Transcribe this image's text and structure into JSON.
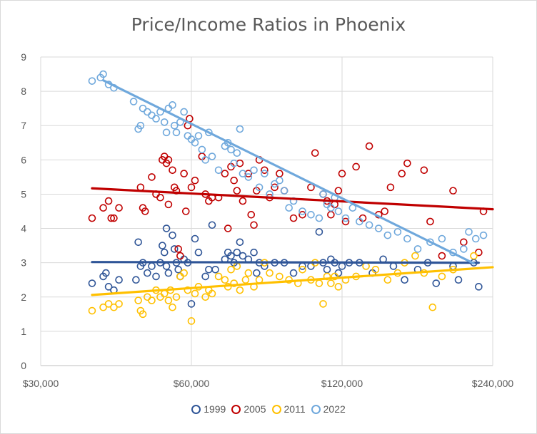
{
  "chart_data": {
    "type": "scatter",
    "title": "Price/Income Ratios in Phoenix",
    "xlabel": "",
    "ylabel": "",
    "xscale": "log",
    "xlim": [
      30000,
      240000
    ],
    "ylim": [
      0,
      9
    ],
    "x_ticks": [
      30000,
      60000,
      120000,
      240000
    ],
    "x_tick_labels": [
      "$30,000",
      "$60,000",
      "$120,000",
      "$240,000"
    ],
    "y_ticks": [
      0,
      1,
      2,
      3,
      4,
      5,
      6,
      7,
      8,
      9
    ],
    "grid": true,
    "legend_position": "bottom",
    "series": [
      {
        "name": "1999",
        "color": "#2f5597",
        "trend": [
          [
            38000,
            3.02
          ],
          [
            225000,
            3.0
          ]
        ],
        "points": [
          [
            38000,
            2.4
          ],
          [
            40000,
            2.6
          ],
          [
            40500,
            2.7
          ],
          [
            41000,
            2.3
          ],
          [
            42000,
            2.2
          ],
          [
            43000,
            2.5
          ],
          [
            46500,
            2.5
          ],
          [
            47000,
            3.6
          ],
          [
            47500,
            2.9
          ],
          [
            48000,
            3.0
          ],
          [
            49000,
            2.7
          ],
          [
            50000,
            2.9
          ],
          [
            51000,
            2.6
          ],
          [
            52000,
            3.0
          ],
          [
            52500,
            3.5
          ],
          [
            53000,
            3.3
          ],
          [
            53500,
            4.0
          ],
          [
            53500,
            2.9
          ],
          [
            54000,
            2.7
          ],
          [
            55000,
            3.8
          ],
          [
            55500,
            3.4
          ],
          [
            56000,
            3.0
          ],
          [
            56500,
            2.8
          ],
          [
            57000,
            2.6
          ],
          [
            58000,
            3.1
          ],
          [
            59000,
            3.0
          ],
          [
            60000,
            1.8
          ],
          [
            61000,
            3.7
          ],
          [
            62000,
            3.3
          ],
          [
            64000,
            2.6
          ],
          [
            65000,
            2.8
          ],
          [
            66000,
            4.1
          ],
          [
            67000,
            2.8
          ],
          [
            70000,
            3.1
          ],
          [
            71000,
            3.3
          ],
          [
            72000,
            3.2
          ],
          [
            73000,
            3.0
          ],
          [
            74000,
            3.3
          ],
          [
            75000,
            3.6
          ],
          [
            76000,
            3.2
          ],
          [
            78000,
            3.1
          ],
          [
            80000,
            3.3
          ],
          [
            81000,
            2.7
          ],
          [
            82000,
            3.0
          ],
          [
            84000,
            2.9
          ],
          [
            88000,
            3.0
          ],
          [
            92000,
            3.0
          ],
          [
            96000,
            2.7
          ],
          [
            100000,
            2.9
          ],
          [
            104000,
            2.9
          ],
          [
            108000,
            3.9
          ],
          [
            110000,
            3.0
          ],
          [
            112000,
            2.8
          ],
          [
            114000,
            3.1
          ],
          [
            116000,
            3.0
          ],
          [
            118000,
            2.7
          ],
          [
            120000,
            2.9
          ],
          [
            124000,
            3.0
          ],
          [
            130000,
            3.0
          ],
          [
            138000,
            2.7
          ],
          [
            145000,
            3.1
          ],
          [
            152000,
            2.9
          ],
          [
            160000,
            2.5
          ],
          [
            170000,
            2.8
          ],
          [
            178000,
            3.0
          ],
          [
            185000,
            2.4
          ],
          [
            200000,
            2.9
          ],
          [
            205000,
            2.5
          ],
          [
            220000,
            3.0
          ],
          [
            225000,
            2.3
          ]
        ]
      },
      {
        "name": "2005",
        "color": "#c00000",
        "trend": [
          [
            38000,
            5.17
          ],
          [
            240000,
            4.56
          ]
        ],
        "points": [
          [
            38000,
            4.3
          ],
          [
            40000,
            4.6
          ],
          [
            41000,
            4.8
          ],
          [
            41500,
            4.3
          ],
          [
            42000,
            4.3
          ],
          [
            43000,
            4.6
          ],
          [
            47500,
            5.2
          ],
          [
            48000,
            4.6
          ],
          [
            48500,
            4.5
          ],
          [
            50000,
            5.5
          ],
          [
            51000,
            5.0
          ],
          [
            52000,
            4.9
          ],
          [
            52500,
            6.0
          ],
          [
            53000,
            6.1
          ],
          [
            53500,
            5.9
          ],
          [
            54000,
            6.0
          ],
          [
            54000,
            4.7
          ],
          [
            55000,
            5.7
          ],
          [
            55500,
            5.2
          ],
          [
            56000,
            5.1
          ],
          [
            56500,
            3.4
          ],
          [
            57000,
            3.2
          ],
          [
            58000,
            5.6
          ],
          [
            58500,
            4.5
          ],
          [
            59000,
            7.0
          ],
          [
            59500,
            7.2
          ],
          [
            60000,
            5.2
          ],
          [
            61000,
            5.4
          ],
          [
            63000,
            6.1
          ],
          [
            64000,
            5.0
          ],
          [
            65000,
            4.8
          ],
          [
            66000,
            4.9
          ],
          [
            68000,
            4.9
          ],
          [
            70000,
            5.6
          ],
          [
            71000,
            4.0
          ],
          [
            72000,
            5.8
          ],
          [
            73000,
            5.4
          ],
          [
            74000,
            5.1
          ],
          [
            75000,
            5.9
          ],
          [
            76000,
            4.8
          ],
          [
            78000,
            5.6
          ],
          [
            79000,
            4.4
          ],
          [
            80000,
            4.1
          ],
          [
            81000,
            5.1
          ],
          [
            82000,
            6.0
          ],
          [
            84000,
            5.7
          ],
          [
            86000,
            4.9
          ],
          [
            88000,
            5.2
          ],
          [
            90000,
            5.6
          ],
          [
            92000,
            5.1
          ],
          [
            96000,
            4.3
          ],
          [
            100000,
            4.4
          ],
          [
            104000,
            5.2
          ],
          [
            106000,
            6.2
          ],
          [
            110000,
            5.0
          ],
          [
            112000,
            4.8
          ],
          [
            114000,
            4.4
          ],
          [
            116000,
            4.7
          ],
          [
            118000,
            5.1
          ],
          [
            120000,
            5.6
          ],
          [
            122000,
            4.2
          ],
          [
            128000,
            5.8
          ],
          [
            132000,
            4.3
          ],
          [
            136000,
            6.4
          ],
          [
            142000,
            4.4
          ],
          [
            146000,
            4.5
          ],
          [
            150000,
            5.2
          ],
          [
            158000,
            5.6
          ],
          [
            162000,
            5.9
          ],
          [
            175000,
            5.7
          ],
          [
            180000,
            4.2
          ],
          [
            190000,
            3.2
          ],
          [
            200000,
            5.1
          ],
          [
            210000,
            3.6
          ],
          [
            225000,
            3.3
          ],
          [
            230000,
            4.5
          ]
        ]
      },
      {
        "name": "2011",
        "color": "#ffc000",
        "trend": [
          [
            38000,
            2.06
          ],
          [
            240000,
            2.87
          ]
        ],
        "points": [
          [
            38000,
            1.6
          ],
          [
            40000,
            1.7
          ],
          [
            41000,
            1.8
          ],
          [
            42000,
            1.7
          ],
          [
            43000,
            1.8
          ],
          [
            47000,
            1.9
          ],
          [
            47500,
            1.6
          ],
          [
            48000,
            1.5
          ],
          [
            49000,
            2.0
          ],
          [
            50000,
            1.9
          ],
          [
            51000,
            2.2
          ],
          [
            52000,
            2.0
          ],
          [
            53000,
            2.1
          ],
          [
            54000,
            1.9
          ],
          [
            54500,
            2.2
          ],
          [
            55000,
            1.7
          ],
          [
            56000,
            2.0
          ],
          [
            57000,
            2.6
          ],
          [
            58000,
            2.7
          ],
          [
            59000,
            2.2
          ],
          [
            60000,
            1.3
          ],
          [
            61000,
            2.1
          ],
          [
            62000,
            2.3
          ],
          [
            64000,
            2.0
          ],
          [
            65000,
            2.2
          ],
          [
            66000,
            2.1
          ],
          [
            68000,
            2.6
          ],
          [
            70000,
            2.5
          ],
          [
            71000,
            2.3
          ],
          [
            72000,
            2.8
          ],
          [
            73000,
            2.4
          ],
          [
            74000,
            2.9
          ],
          [
            75000,
            2.2
          ],
          [
            77000,
            2.5
          ],
          [
            78000,
            2.7
          ],
          [
            80000,
            2.3
          ],
          [
            82000,
            2.5
          ],
          [
            84000,
            3.0
          ],
          [
            86000,
            2.7
          ],
          [
            90000,
            2.6
          ],
          [
            94000,
            2.5
          ],
          [
            98000,
            2.4
          ],
          [
            100000,
            2.8
          ],
          [
            104000,
            2.5
          ],
          [
            106000,
            3.0
          ],
          [
            108000,
            2.4
          ],
          [
            110000,
            1.8
          ],
          [
            112000,
            2.6
          ],
          [
            114000,
            2.4
          ],
          [
            116000,
            2.6
          ],
          [
            118000,
            2.3
          ],
          [
            122000,
            2.5
          ],
          [
            128000,
            2.6
          ],
          [
            134000,
            2.9
          ],
          [
            140000,
            2.8
          ],
          [
            148000,
            2.5
          ],
          [
            155000,
            2.7
          ],
          [
            160000,
            3.0
          ],
          [
            168000,
            3.2
          ],
          [
            175000,
            2.7
          ],
          [
            182000,
            1.7
          ],
          [
            190000,
            2.6
          ],
          [
            200000,
            2.8
          ],
          [
            220000,
            3.2
          ]
        ]
      },
      {
        "name": "2022",
        "color": "#6fa8dc",
        "trend": [
          [
            40000,
            8.32
          ],
          [
            220000,
            2.98
          ]
        ],
        "points": [
          [
            38000,
            8.3
          ],
          [
            39500,
            8.4
          ],
          [
            40000,
            8.5
          ],
          [
            41000,
            8.2
          ],
          [
            42000,
            8.1
          ],
          [
            46000,
            7.7
          ],
          [
            47000,
            6.9
          ],
          [
            47500,
            7.0
          ],
          [
            48000,
            7.5
          ],
          [
            49000,
            7.4
          ],
          [
            50000,
            7.3
          ],
          [
            51000,
            7.2
          ],
          [
            52000,
            7.4
          ],
          [
            53000,
            7.1
          ],
          [
            53500,
            6.8
          ],
          [
            54000,
            7.5
          ],
          [
            55000,
            7.6
          ],
          [
            55500,
            7.0
          ],
          [
            56000,
            6.8
          ],
          [
            57000,
            7.1
          ],
          [
            58000,
            7.4
          ],
          [
            59000,
            6.7
          ],
          [
            60000,
            6.6
          ],
          [
            61000,
            6.5
          ],
          [
            62000,
            6.7
          ],
          [
            63000,
            6.3
          ],
          [
            64000,
            6.0
          ],
          [
            65000,
            6.8
          ],
          [
            66000,
            6.1
          ],
          [
            68000,
            5.7
          ],
          [
            70000,
            6.4
          ],
          [
            71000,
            6.5
          ],
          [
            72000,
            6.3
          ],
          [
            73000,
            5.9
          ],
          [
            74000,
            6.2
          ],
          [
            75000,
            6.9
          ],
          [
            76000,
            5.6
          ],
          [
            78000,
            5.5
          ],
          [
            80000,
            5.7
          ],
          [
            82000,
            5.2
          ],
          [
            84000,
            5.6
          ],
          [
            86000,
            5.0
          ],
          [
            88000,
            5.3
          ],
          [
            90000,
            5.4
          ],
          [
            92000,
            5.1
          ],
          [
            94000,
            4.6
          ],
          [
            96000,
            4.8
          ],
          [
            100000,
            4.5
          ],
          [
            104000,
            4.4
          ],
          [
            108000,
            4.3
          ],
          [
            110000,
            5.0
          ],
          [
            112000,
            4.7
          ],
          [
            114000,
            4.6
          ],
          [
            116000,
            4.9
          ],
          [
            118000,
            4.5
          ],
          [
            122000,
            4.3
          ],
          [
            126000,
            4.6
          ],
          [
            130000,
            4.2
          ],
          [
            136000,
            4.1
          ],
          [
            142000,
            4.0
          ],
          [
            148000,
            3.8
          ],
          [
            155000,
            3.9
          ],
          [
            162000,
            3.7
          ],
          [
            170000,
            3.4
          ],
          [
            180000,
            3.6
          ],
          [
            190000,
            3.7
          ],
          [
            200000,
            3.3
          ],
          [
            210000,
            3.4
          ],
          [
            215000,
            3.9
          ],
          [
            222000,
            3.7
          ],
          [
            230000,
            3.8
          ]
        ]
      }
    ]
  }
}
